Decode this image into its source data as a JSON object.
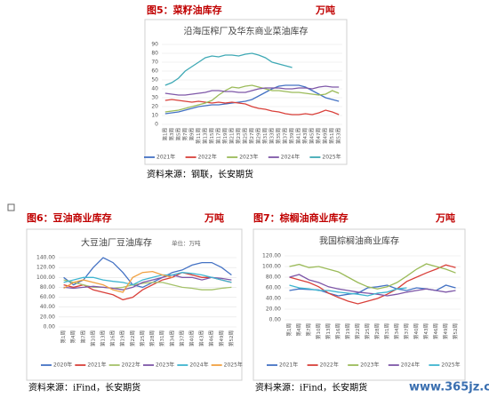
{
  "chart_data": [
    {
      "type": "line",
      "caption": "图5：菜籽油库存",
      "unit": "万吨",
      "title": "沿海压榨厂及华东商业菜油库存",
      "source": "资料来源：钢联，长安期货",
      "categories": [
        "第1周",
        "第3周",
        "第5周",
        "第7周",
        "第9周",
        "第11周",
        "第13周",
        "第15周",
        "第17周",
        "第19周",
        "第21周",
        "第23周",
        "第25周",
        "第27周",
        "第29周",
        "第31周",
        "第33周",
        "第35周",
        "第37周",
        "第39周",
        "第41周",
        "第43周",
        "第45周",
        "第47周",
        "第49周",
        "第51周",
        "第53周"
      ],
      "ylim": [
        0,
        90
      ],
      "yticks": [
        0,
        10,
        20,
        30,
        40,
        50,
        60,
        70,
        80,
        90
      ],
      "grid": true,
      "series": [
        {
          "name": "2021年",
          "color": "#4472c4",
          "values": [
            12,
            13,
            14,
            16,
            18,
            20,
            21,
            22,
            22,
            23,
            24,
            25,
            26,
            28,
            32,
            36,
            40,
            43,
            44,
            44,
            44,
            42,
            38,
            34,
            30,
            28,
            26
          ]
        },
        {
          "name": "2022年",
          "color": "#d9403a",
          "values": [
            27,
            28,
            27,
            26,
            25,
            26,
            25,
            24,
            25,
            24,
            25,
            24,
            23,
            20,
            18,
            17,
            15,
            14,
            12,
            11,
            11,
            12,
            11,
            13,
            16,
            14,
            11
          ]
        },
        {
          "name": "2023年",
          "color": "#9bbb59",
          "values": [
            14,
            15,
            16,
            18,
            20,
            22,
            24,
            27,
            33,
            38,
            42,
            41,
            43,
            44,
            42,
            40,
            38,
            38,
            37,
            36,
            36,
            35,
            34,
            33,
            34,
            38,
            35
          ]
        },
        {
          "name": "2024年",
          "color": "#7e57a8",
          "values": [
            35,
            34,
            33,
            33,
            34,
            35,
            36,
            38,
            38,
            37,
            37,
            36,
            36,
            38,
            40,
            41,
            41,
            41,
            40,
            40,
            41,
            41,
            40,
            42,
            43,
            42,
            42
          ]
        },
        {
          "name": "2025年",
          "color": "#3fa9b5",
          "values": [
            44,
            47,
            52,
            60,
            65,
            70,
            75,
            77,
            76,
            78,
            78,
            77,
            79,
            80,
            78,
            75,
            70,
            68,
            66,
            64,
            null,
            null,
            null,
            null,
            null,
            null,
            null
          ]
        }
      ]
    },
    {
      "type": "line",
      "caption": "图6：豆油商业库存",
      "unit": "万吨",
      "title": "大豆油厂豆油库存",
      "subtitle": "单位：万吨",
      "source": "资料来源：iFind，长安期货",
      "categories": [
        "第1周",
        "第4周",
        "第7周",
        "第10周",
        "第13周",
        "第16周",
        "第19周",
        "第22周",
        "第25周",
        "第28周",
        "第31周",
        "第34周",
        "第37周",
        "第40周",
        "第43周",
        "第46周",
        "第49周",
        "第52周"
      ],
      "ylim": [
        0,
        140
      ],
      "yticks": [
        {
          "value": 0,
          "label": "0.00"
        },
        {
          "value": 20,
          "label": "20.00"
        },
        {
          "value": 40,
          "label": "40.00"
        },
        {
          "value": 60,
          "label": "60.00"
        },
        {
          "value": 80,
          "label": "80.00"
        },
        {
          "value": 100,
          "label": "100.00"
        },
        {
          "value": 120,
          "label": "120.00"
        },
        {
          "value": 140,
          "label": "140.00"
        }
      ],
      "grid": true,
      "series": [
        {
          "name": "2020年",
          "color": "#4472c4",
          "values": [
            100,
            85,
            95,
            120,
            140,
            130,
            110,
            85,
            80,
            90,
            100,
            110,
            115,
            125,
            130,
            130,
            120,
            105
          ]
        },
        {
          "name": "2021年",
          "color": "#d9403a",
          "values": [
            85,
            80,
            85,
            75,
            70,
            65,
            55,
            60,
            75,
            85,
            95,
            100,
            110,
            105,
            100,
            100,
            95,
            90
          ]
        },
        {
          "name": "2022年",
          "color": "#a5c26a",
          "values": [
            95,
            90,
            85,
            80,
            80,
            78,
            80,
            85,
            88,
            90,
            90,
            85,
            80,
            78,
            75,
            75,
            78,
            80
          ]
        },
        {
          "name": "2023年",
          "color": "#7e57a8",
          "values": [
            80,
            78,
            80,
            82,
            80,
            78,
            75,
            80,
            90,
            95,
            100,
            105,
            100,
            100,
            95,
            100,
            98,
            95
          ]
        },
        {
          "name": "2024年",
          "color": "#3fb5d0",
          "values": [
            90,
            95,
            100,
            100,
            95,
            92,
            90,
            85,
            95,
            100,
            105,
            105,
            110,
            108,
            105,
            100,
            95,
            90
          ]
        },
        {
          "name": "2025年",
          "color": "#f0a040",
          "values": [
            78,
            90,
            95,
            90,
            85,
            75,
            70,
            100,
            110,
            112,
            105,
            100,
            null,
            null,
            null,
            null,
            null,
            null
          ]
        }
      ]
    },
    {
      "type": "line",
      "caption": "图7：棕榈油商业库存",
      "unit": "万吨",
      "title": "我国棕榈油商业库存",
      "source": "资料来源：iFind，长安期货",
      "categories": [
        "第1周",
        "第4周",
        "第7周",
        "第10周",
        "第13周",
        "第16周",
        "第19周",
        "第22周",
        "第25周",
        "第28周",
        "第31周",
        "第34周",
        "第37周",
        "第40周",
        "第43周",
        "第46周",
        "第49周",
        "第52周"
      ],
      "ylim": [
        0,
        120
      ],
      "yticks": [
        {
          "value": 0,
          "label": "0.00"
        },
        {
          "value": 20,
          "label": "20.00"
        },
        {
          "value": 40,
          "label": "40.00"
        },
        {
          "value": 60,
          "label": "60.00"
        },
        {
          "value": 80,
          "label": "80.00"
        },
        {
          "value": 100,
          "label": "100.00"
        },
        {
          "value": 120,
          "label": "120.00"
        }
      ],
      "grid": true,
      "series": [
        {
          "name": "2021年",
          "color": "#4472c4",
          "values": [
            55,
            58,
            57,
            56,
            50,
            45,
            48,
            50,
            60,
            62,
            65,
            58,
            55,
            60,
            58,
            55,
            65,
            60
          ]
        },
        {
          "name": "2022年",
          "color": "#d9403a",
          "values": [
            80,
            75,
            70,
            62,
            50,
            42,
            35,
            30,
            35,
            40,
            48,
            58,
            72,
            80,
            88,
            95,
            103,
            98
          ]
        },
        {
          "name": "2023年",
          "color": "#9bbb59",
          "values": [
            100,
            104,
            98,
            100,
            95,
            90,
            80,
            70,
            62,
            58,
            62,
            70,
            82,
            95,
            105,
            100,
            95,
            88
          ]
        },
        {
          "name": "2024年",
          "color": "#7e57a8",
          "values": [
            80,
            85,
            75,
            70,
            62,
            58,
            55,
            52,
            50,
            48,
            45,
            48,
            52,
            55,
            58,
            55,
            52,
            55
          ]
        },
        {
          "name": "2025年",
          "color": "#3fb5d0",
          "values": [
            65,
            60,
            58,
            55,
            55,
            52,
            50,
            48,
            45,
            50,
            52,
            58,
            60,
            null,
            null,
            null,
            null,
            null
          ]
        }
      ]
    }
  ],
  "watermark": "www.365jz.com"
}
